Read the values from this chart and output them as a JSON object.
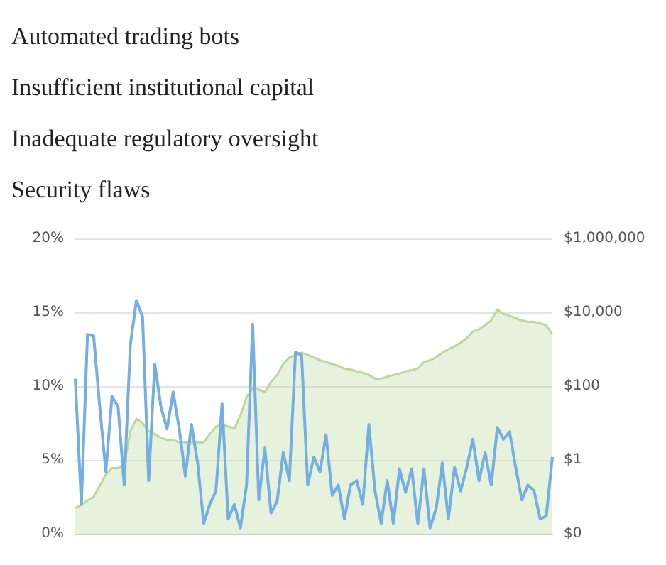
{
  "chart_data": {
    "type": "line",
    "annotations": [
      "Automated trading bots",
      "Insufficient institutional capital",
      "Inadequate regulatory oversight",
      "Security flaws"
    ],
    "categories": [
      null,
      null,
      null,
      null,
      null,
      null,
      null,
      null,
      null,
      null,
      null,
      null,
      null,
      null,
      null,
      null,
      null,
      null,
      null,
      null,
      null,
      null,
      null,
      null,
      null,
      null,
      null,
      null,
      null,
      null,
      null,
      null,
      null,
      null,
      null,
      null,
      null,
      null,
      null,
      null,
      null,
      null,
      null,
      null,
      null,
      null,
      null,
      null,
      null,
      null,
      null,
      null,
      null,
      null,
      null,
      null,
      null,
      null,
      null,
      null,
      null,
      null,
      null,
      null,
      null,
      null,
      null,
      null,
      null,
      null,
      null,
      null,
      null,
      null,
      null,
      null,
      null,
      null,
      null
    ],
    "tick_labels": "y",
    "ylim": [
      0,
      20
    ],
    "yticks": [
      {
        "value": 0,
        "label": "0%"
      },
      {
        "value": 5,
        "label": "5%"
      },
      {
        "value": 10,
        "label": "10%"
      },
      {
        "value": 15,
        "label": "15%"
      },
      {
        "value": 20,
        "label": "20%"
      }
    ],
    "y2lim": [
      0.01,
      1000000
    ],
    "y2ticks": [
      {
        "value": 0.01,
        "label": "$0"
      },
      {
        "value": 1,
        "label": "$1"
      },
      {
        "value": 100,
        "label": "$100"
      },
      {
        "value": 10000,
        "label": "$10,000"
      },
      {
        "value": 1000000,
        "label": "$1,000,000"
      }
    ],
    "log": "y2",
    "grid": "y",
    "series": [
      {
        "type": "area",
        "axis": "y2",
        "color": "#b9d99c",
        "values": [
          0.05,
          0.06,
          0.08,
          0.1,
          0.2,
          0.4,
          0.6,
          0.6,
          0.7,
          6,
          13,
          10,
          6,
          5,
          4,
          3.5,
          3.5,
          3,
          3,
          3,
          3,
          3,
          5,
          8,
          9,
          8,
          7,
          16,
          50,
          90,
          80,
          70,
          130,
          200,
          400,
          600,
          700,
          800,
          700,
          600,
          500,
          450,
          400,
          350,
          300,
          280,
          250,
          230,
          200,
          160,
          160,
          180,
          200,
          220,
          250,
          270,
          300,
          450,
          500,
          600,
          800,
          1000,
          1200,
          1500,
          2000,
          3000,
          3500,
          4500,
          6000,
          12000,
          9000,
          8000,
          7000,
          6000,
          5500,
          5500,
          5000,
          4500,
          2500
        ]
      },
      {
        "type": "line",
        "axis": "y",
        "color": "#74aee2",
        "values": [
          10.5,
          2.0,
          13.5,
          13.4,
          8.6,
          4.2,
          9.3,
          8.6,
          3.3,
          12.8,
          15.8,
          14.7,
          3.6,
          11.5,
          8.6,
          7.1,
          9.6,
          7.1,
          3.9,
          7.4,
          4.8,
          0.7,
          2.0,
          2.9,
          8.8,
          1.0,
          2.0,
          0.4,
          3.3,
          14.2,
          2.3,
          5.8,
          1.4,
          2.2,
          5.5,
          3.6,
          12.3,
          12.1,
          3.3,
          5.2,
          4.2,
          6.7,
          2.6,
          3.3,
          1.0,
          3.3,
          3.6,
          2.0,
          7.4,
          2.9,
          0.7,
          3.6,
          0.7,
          4.4,
          2.8,
          4.4,
          0.7,
          4.4,
          0.4,
          1.7,
          4.8,
          1.0,
          4.5,
          2.9,
          4.5,
          6.4,
          3.6,
          5.5,
          3.3,
          7.2,
          6.4,
          6.9,
          4.5,
          2.3,
          3.3,
          2.9,
          1.0,
          1.2,
          5.2
        ]
      }
    ]
  }
}
